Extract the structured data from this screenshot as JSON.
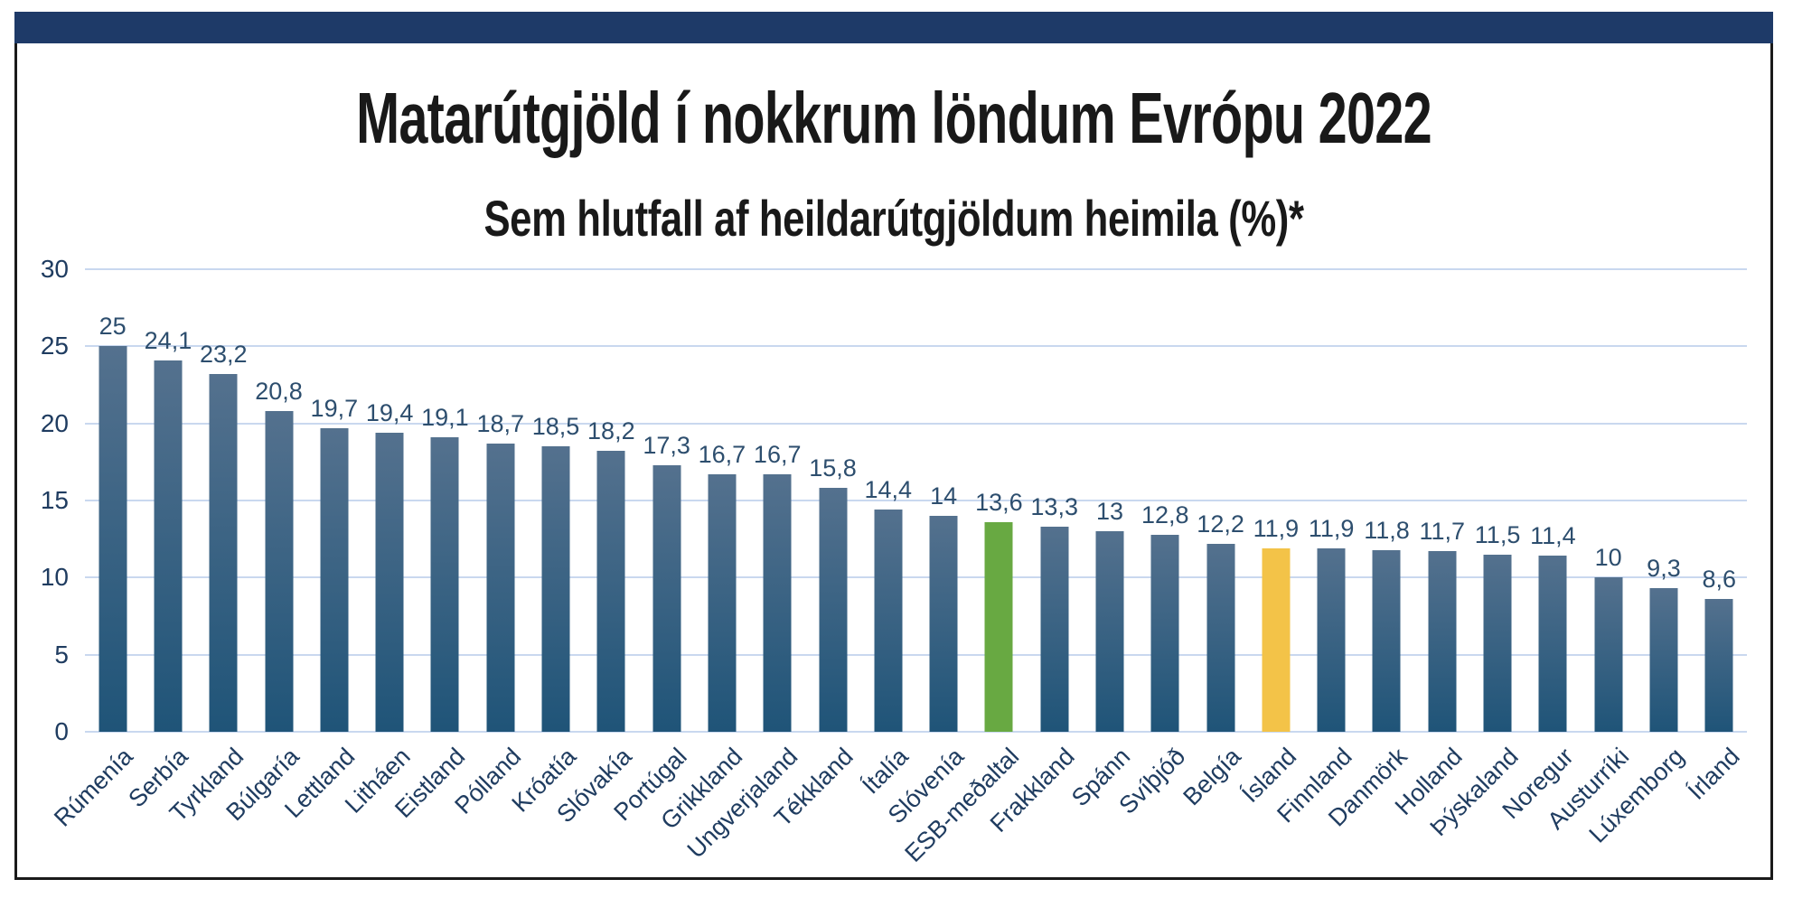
{
  "chart_data": {
    "type": "bar",
    "title": "Matarútgjöld í nokkrum löndum Evrópu 2022",
    "subtitle": "Sem hlutfall af heildarútgjöldum heimila (%)*",
    "xlabel": "",
    "ylabel": "",
    "ylim": [
      0,
      30
    ],
    "yticks": [
      0,
      5,
      10,
      15,
      20,
      25,
      30
    ],
    "grid": "on",
    "legend": "none",
    "categories": [
      "Rúmenía",
      "Serbía",
      "Tyrkland",
      "Búlgaría",
      "Lettland",
      "Litháen",
      "Eistland",
      "Pólland",
      "Króatía",
      "Slóvakía",
      "Portúgal",
      "Grikkland",
      "Ungverjaland",
      "Tékkland",
      "Ítalía",
      "Slóvenía",
      "ESB-meðaltal",
      "Frakkland",
      "Spánn",
      "Svíþjóð",
      "Belgía",
      "Ísland",
      "Finnland",
      "Danmörk",
      "Holland",
      "Þýskaland",
      "Noregur",
      "Austurríki",
      "Lúxemborg",
      "Írland"
    ],
    "values": [
      25,
      24.1,
      23.2,
      20.8,
      19.7,
      19.4,
      19.1,
      18.7,
      18.5,
      18.2,
      17.3,
      16.7,
      16.7,
      15.8,
      14.4,
      14,
      13.6,
      13.3,
      13,
      12.8,
      12.2,
      11.9,
      11.9,
      11.8,
      11.7,
      11.5,
      11.4,
      10,
      9.3,
      8.6
    ],
    "value_labels": [
      "25",
      "24,1",
      "23,2",
      "20,8",
      "19,7",
      "19,4",
      "19,1",
      "18,7",
      "18,5",
      "18,2",
      "17,3",
      "16,7",
      "16,7",
      "15,8",
      "14,4",
      "14",
      "13,6",
      "13,3",
      "13",
      "12,8",
      "12,2",
      "11,9",
      "11,9",
      "11,8",
      "11,7",
      "11,5",
      "11,4",
      "10",
      "9,3",
      "8,6"
    ],
    "highlights": {
      "ESB-meðaltal": "green",
      "Ísland": "yellow"
    },
    "colors": {
      "header_band": "#1e3a68",
      "frame_border": "#1a1a1a",
      "bar_blue_top": "#54718e",
      "bar_blue_bottom": "#1f5478",
      "bar_green": "#68a942",
      "bar_yellow": "#f3c348",
      "gridline": "#c9d8ef",
      "tick_text": "#1f3c60",
      "value_text": "#2d4e6e",
      "title_text": "#191919"
    }
  }
}
